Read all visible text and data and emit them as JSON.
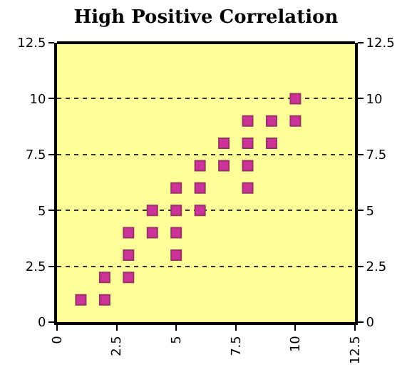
{
  "chart_data": {
    "type": "scatter",
    "title": "High Positive Correlation",
    "x": [
      1,
      2,
      2,
      3,
      3,
      3,
      4,
      4,
      5,
      5,
      5,
      5,
      6,
      6,
      6,
      7,
      7,
      8,
      8,
      8,
      8,
      9,
      9,
      10,
      10
    ],
    "values": [
      1,
      1,
      2,
      2,
      3,
      4,
      4,
      5,
      3,
      4,
      5,
      6,
      5,
      6,
      7,
      7,
      8,
      6,
      7,
      8,
      9,
      8,
      9,
      9,
      10
    ],
    "color": "#cc3399",
    "marker": "square",
    "xlim": [
      0,
      12.5
    ],
    "xticks": [
      0,
      2.5,
      5,
      7.5,
      10,
      12.5
    ],
    "ylim": [
      0,
      12.5
    ],
    "yticks": [
      0,
      2.5,
      5,
      7.5,
      10,
      12.5
    ],
    "y2lim": [
      0,
      12.5
    ],
    "y2ticks": [
      0,
      2.5,
      5,
      7.5,
      10,
      12.5
    ],
    "grid": "y"
  }
}
